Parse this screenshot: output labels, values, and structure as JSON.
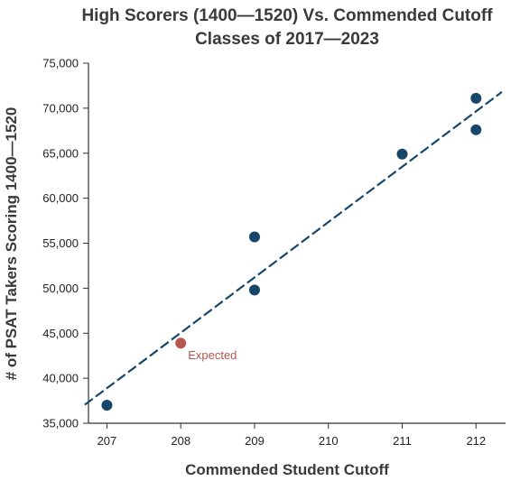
{
  "chart_data": {
    "type": "scatter",
    "title": "High Scorers (1400—1520) Vs. Commended Cutoff",
    "subtitle": "Classes of 2017—2023",
    "xlabel": "Commended Student Cutoff",
    "ylabel": "# of PSAT Takers Scoring 1400—1520",
    "xlim": [
      206.75,
      212.4
    ],
    "ylim": [
      35000,
      75000
    ],
    "x_ticks": [
      207,
      208,
      209,
      210,
      211,
      212
    ],
    "x_tick_labels": [
      "207",
      "208",
      "209",
      "210",
      "211",
      "212"
    ],
    "y_ticks": [
      35000,
      40000,
      45000,
      50000,
      55000,
      60000,
      65000,
      70000,
      75000
    ],
    "y_tick_labels": [
      "35,000",
      "40,000",
      "45,000",
      "50,000",
      "55,000",
      "60,000",
      "65,000",
      "70,000",
      "75,000"
    ],
    "grid": false,
    "series": [
      {
        "points": [
          {
            "x": 207,
            "y": 37000
          },
          {
            "x": 209,
            "y": 55700
          },
          {
            "x": 209,
            "y": 49800
          },
          {
            "x": 211,
            "y": 64900
          },
          {
            "x": 212,
            "y": 71100
          },
          {
            "x": 212,
            "y": 67600
          }
        ],
        "color": "#17466b"
      },
      {
        "points": [
          {
            "x": 208,
            "y": 43900
          }
        ],
        "color": "#b5564f"
      }
    ],
    "trendline": {
      "x": [
        206.7,
        212.35
      ],
      "y": [
        37050,
        71800
      ],
      "style": "dashed",
      "color": "#17466b"
    },
    "annotations": [
      {
        "text": "Expected",
        "x": 208,
        "y": 43900,
        "color": "#b5564f"
      }
    ]
  }
}
